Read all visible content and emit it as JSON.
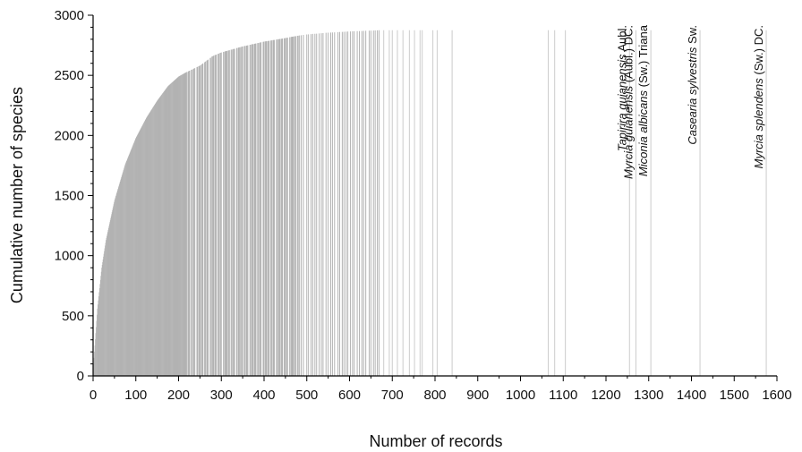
{
  "chart_data": {
    "type": "bar",
    "xlabel": "Number of records",
    "ylabel": "Cumulative number of species",
    "xlim": [
      0,
      1600
    ],
    "ylim": [
      0,
      3000
    ],
    "x_ticks": [
      0,
      100,
      200,
      300,
      400,
      500,
      600,
      700,
      800,
      900,
      1000,
      1100,
      1200,
      1300,
      1400,
      1500,
      1600
    ],
    "y_ticks": [
      0,
      500,
      1000,
      1500,
      2000,
      2500,
      3000
    ],
    "bar_color": "#b3b3b3",
    "accumulation_curve": {
      "x": [
        1,
        10,
        20,
        30,
        50,
        75,
        100,
        125,
        150,
        175,
        200,
        215,
        250,
        280,
        300,
        350,
        400,
        450,
        480,
        500,
        550,
        600,
        650,
        670
      ],
      "y": [
        100,
        560,
        900,
        1130,
        1460,
        1760,
        1980,
        2150,
        2290,
        2410,
        2490,
        2520,
        2580,
        2660,
        2690,
        2740,
        2780,
        2810,
        2830,
        2840,
        2855,
        2865,
        2872,
        2875
      ]
    },
    "sparse_records": [
      680,
      693,
      700,
      712,
      725,
      740,
      752,
      765,
      770,
      795,
      805,
      840,
      1065,
      1080,
      1105,
      1255,
      1270,
      1305,
      1420,
      1575
    ],
    "annotations": [
      {
        "x": 1255,
        "genus_species": "Tapirira guianensis",
        "author": " Aubl."
      },
      {
        "x": 1270,
        "genus_species": "Myrcia guianensis",
        "author": " (Aubl.) DC."
      },
      {
        "x": 1305,
        "genus_species": "Miconia albicans",
        "author": " (Sw.) Triana"
      },
      {
        "x": 1420,
        "genus_species": "Casearia sylvestris",
        "author": " Sw."
      },
      {
        "x": 1575,
        "genus_species": "Myrcia splendens",
        "author": " (Sw.) DC."
      }
    ]
  }
}
